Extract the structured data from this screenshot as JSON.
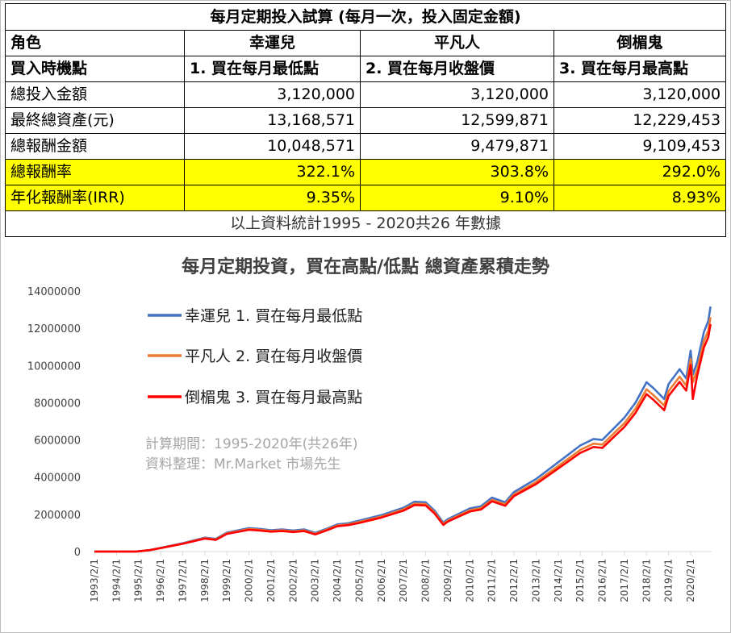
{
  "table": {
    "title": "每月定期投入試算 (每月一次，投入固定金額)",
    "header_label": "角色",
    "roles": [
      "幸運兒",
      "平凡人",
      "倒楣鬼"
    ],
    "timing_label": "買入時機點",
    "timings": [
      "1. 買在每月最低點",
      "2. 買在每月收盤價",
      "3. 買在每月最高點"
    ],
    "rows": [
      {
        "label": "總投入金額",
        "values": [
          "3,120,000",
          "3,120,000",
          "3,120,000"
        ],
        "highlight": false
      },
      {
        "label": "最終總資產(元)",
        "values": [
          "13,168,571",
          "12,599,871",
          "12,229,453"
        ],
        "highlight": false
      },
      {
        "label": "總報酬金額",
        "values": [
          "10,048,571",
          "9,479,871",
          "9,109,453"
        ],
        "highlight": false
      },
      {
        "label": "總報酬率",
        "values": [
          "322.1%",
          "303.8%",
          "292.0%"
        ],
        "highlight": true
      },
      {
        "label": "年化報酬率(IRR)",
        "values": [
          "9.35%",
          "9.10%",
          "8.93%"
        ],
        "highlight": true
      }
    ],
    "footer": "以上資料統計1995 - 2020共26 年數據",
    "highlight_color": "#ffff00"
  },
  "chart_data": {
    "type": "line",
    "title": "每月定期投資，買在高點/低點  總資產累積走勢",
    "note_lines": [
      "計算期間：1995-2020年(共26年)",
      "資料整理：Mr.Market 市場先生"
    ],
    "ylim": [
      0,
      14000000
    ],
    "y_ticks": [
      "0",
      "2000000",
      "4000000",
      "6000000",
      "8000000",
      "10000000",
      "12000000",
      "14000000"
    ],
    "x_tick_labels": [
      "1993/2/1",
      "1994/2/1",
      "1995/2/1",
      "1996/2/1",
      "1997/2/1",
      "1998/2/1",
      "1999/2/1",
      "2000/2/1",
      "2001/2/1",
      "2002/2/1",
      "2003/2/1",
      "2004/2/1",
      "2005/2/1",
      "2006/2/1",
      "2007/2/1",
      "2008/2/1",
      "2009/2/1",
      "2010/2/1",
      "2011/2/1",
      "2012/2/1",
      "2013/2/1",
      "2014/2/1",
      "2015/2/1",
      "2016/2/1",
      "2017/2/1",
      "2018/2/1",
      "2019/2/1",
      "2020/2/1"
    ],
    "x": [
      1993.1,
      1994.1,
      1995.0,
      1995.6,
      1996.1,
      1997.1,
      1998.1,
      1998.6,
      1999.1,
      2000.1,
      2000.6,
      2001.1,
      2001.6,
      2002.1,
      2002.6,
      2003.1,
      2003.6,
      2004.1,
      2004.6,
      2005.1,
      2006.1,
      2007.1,
      2007.6,
      2008.1,
      2008.5,
      2008.9,
      2009.1,
      2009.6,
      2010.1,
      2010.6,
      2011.1,
      2011.7,
      2012.1,
      2013.1,
      2014.1,
      2015.1,
      2015.7,
      2016.1,
      2017.1,
      2017.6,
      2018.1,
      2018.4,
      2018.9,
      2019.1,
      2019.6,
      2019.9,
      2020.1,
      2020.2,
      2020.4,
      2020.7,
      2020.9,
      2021.0
    ],
    "series": [
      {
        "name": "幸運兒 1. 買在每月最低點",
        "color": "#4472c4",
        "values": [
          0,
          0,
          5000,
          80000,
          200000,
          450000,
          750000,
          680000,
          1020000,
          1260000,
          1220000,
          1150000,
          1190000,
          1130000,
          1190000,
          1000000,
          1220000,
          1460000,
          1520000,
          1660000,
          1960000,
          2360000,
          2680000,
          2650000,
          2200000,
          1550000,
          1740000,
          2030000,
          2320000,
          2430000,
          2900000,
          2650000,
          3200000,
          3900000,
          4800000,
          5700000,
          6050000,
          6000000,
          7200000,
          8000000,
          9100000,
          8800000,
          8200000,
          9000000,
          9800000,
          9300000,
          10800000,
          9500000,
          10200000,
          11800000,
          12400000,
          13168571
        ]
      },
      {
        "name": "平凡人 2. 買在每月收盤價",
        "color": "#ed7d31",
        "values": [
          0,
          0,
          5000,
          77000,
          190000,
          430000,
          720000,
          650000,
          980000,
          1210000,
          1170000,
          1100000,
          1140000,
          1080000,
          1140000,
          950000,
          1170000,
          1400000,
          1460000,
          1590000,
          1880000,
          2270000,
          2580000,
          2550000,
          2110000,
          1480000,
          1660000,
          1940000,
          2220000,
          2330000,
          2780000,
          2540000,
          3070000,
          3740000,
          4600000,
          5460000,
          5800000,
          5750000,
          6900000,
          7680000,
          8720000,
          8420000,
          7850000,
          8620000,
          9400000,
          8920000,
          10350000,
          9100000,
          9780000,
          11300000,
          11880000,
          12599871
        ]
      },
      {
        "name": "倒楣鬼 3. 買在每月最高點",
        "color": "#ff0000",
        "values": [
          0,
          0,
          5000,
          75000,
          185000,
          415000,
          700000,
          630000,
          950000,
          1170000,
          1130000,
          1070000,
          1100000,
          1050000,
          1100000,
          920000,
          1130000,
          1360000,
          1420000,
          1540000,
          1830000,
          2200000,
          2500000,
          2480000,
          2050000,
          1430000,
          1610000,
          1880000,
          2150000,
          2260000,
          2700000,
          2460000,
          2980000,
          3630000,
          4460000,
          5300000,
          5620000,
          5570000,
          6700000,
          7450000,
          8460000,
          8170000,
          7600000,
          8360000,
          9120000,
          8650000,
          10030000,
          8200000,
          9480000,
          10960000,
          11530000,
          12229453
        ]
      }
    ],
    "legend_position": "top-left",
    "grid": false
  }
}
